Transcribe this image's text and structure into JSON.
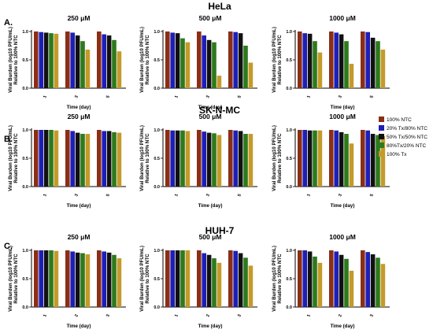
{
  "chart_data": [
    {
      "type": "bar",
      "cell_line": "HeLa",
      "panel_label": "A.",
      "ylabel": "Viral Burden (log10 PFU/mL) Relative to 100% NTC",
      "xlabel": "Time (day)",
      "ylim": [
        0,
        1.0
      ],
      "yticks": [
        "0.0",
        "0.5",
        "1.0"
      ],
      "series_names": [
        "100% NTC",
        "20% Tx/80% NTC",
        "50% Tx/50% NTC",
        "80%Tx/20% NTC",
        "100% Tx"
      ],
      "panels": [
        {
          "concentration": "250 μM",
          "categories": [
            "1",
            "3",
            "5"
          ],
          "values": [
            [
              1.0,
              0.99,
              0.98,
              0.97,
              0.96
            ],
            [
              1.0,
              0.98,
              0.93,
              0.83,
              0.68
            ],
            [
              1.0,
              0.95,
              0.93,
              0.85,
              0.65
            ]
          ]
        },
        {
          "concentration": "500 μM",
          "categories": [
            "1",
            "3",
            "5"
          ],
          "values": [
            [
              1.0,
              0.98,
              0.97,
              0.88,
              0.81
            ],
            [
              1.0,
              0.93,
              0.85,
              0.81,
              0.22
            ],
            [
              1.0,
              0.99,
              0.97,
              0.75,
              0.45
            ]
          ]
        },
        {
          "concentration": "1000 μM",
          "categories": [
            "1",
            "3",
            "5"
          ],
          "values": [
            [
              1.0,
              0.97,
              0.96,
              0.83,
              0.63
            ],
            [
              1.0,
              0.98,
              0.95,
              0.83,
              0.43
            ],
            [
              1.0,
              0.99,
              0.89,
              0.83,
              0.68
            ]
          ]
        }
      ]
    },
    {
      "type": "bar",
      "cell_line": "SK-N-MC",
      "panel_label": "B.",
      "ylabel": "Viral Burden (log10 PFU/mL) Relative to 100% NTC",
      "xlabel": "Time (day)",
      "ylim": [
        0,
        1.0
      ],
      "yticks": [
        "0.0",
        "0.5",
        "1.0"
      ],
      "series_names": [
        "100% NTC",
        "20% Tx/80% NTC",
        "50% Tx/50% NTC",
        "80%Tx/20% NTC",
        "100% Tx"
      ],
      "panels": [
        {
          "concentration": "250 μM",
          "categories": [
            "1",
            "3",
            "5"
          ],
          "values": [
            [
              1.0,
              1.0,
              1.0,
              1.0,
              0.99
            ],
            [
              1.0,
              0.98,
              0.95,
              0.93,
              0.93
            ],
            [
              1.0,
              0.98,
              0.98,
              0.96,
              0.95
            ]
          ]
        },
        {
          "concentration": "500 μM",
          "categories": [
            "1",
            "3",
            "5"
          ],
          "values": [
            [
              1.0,
              0.99,
              0.99,
              0.99,
              0.98
            ],
            [
              1.0,
              0.97,
              0.95,
              0.94,
              0.91
            ],
            [
              1.0,
              0.99,
              0.98,
              0.93,
              0.93
            ]
          ]
        },
        {
          "concentration": "1000 μM",
          "categories": [
            "1",
            "3",
            "5"
          ],
          "values": [
            [
              1.0,
              1.0,
              0.99,
              0.99,
              0.99
            ],
            [
              1.0,
              0.99,
              0.96,
              0.93,
              0.76
            ],
            [
              1.0,
              0.99,
              0.93,
              0.91,
              0.89
            ]
          ]
        }
      ]
    },
    {
      "type": "bar",
      "cell_line": "HUH-7",
      "panel_label": "C.",
      "ylabel": "Viral Burden (log10 PFU/mL) Relative to 100% NTC",
      "xlabel": "Time (day)",
      "ylim": [
        0,
        1.0
      ],
      "yticks": [
        "0.0",
        "0.5",
        "1.0"
      ],
      "series_names": [
        "100% NTC",
        "20% Tx/80% NTC",
        "50% Tx/50% NTC",
        "80%Tx/20% NTC",
        "100% Tx"
      ],
      "panels": [
        {
          "concentration": "250 μM",
          "categories": [
            "1",
            "2",
            "3"
          ],
          "values": [
            [
              1.0,
              1.0,
              1.0,
              1.0,
              0.99
            ],
            [
              1.0,
              0.98,
              0.96,
              0.95,
              0.93
            ],
            [
              1.0,
              0.98,
              0.96,
              0.92,
              0.86
            ]
          ]
        },
        {
          "concentration": "500 μM",
          "categories": [
            "1",
            "2",
            "3"
          ],
          "values": [
            [
              1.0,
              1.0,
              1.0,
              1.0,
              1.0
            ],
            [
              1.0,
              0.95,
              0.92,
              0.86,
              0.78
            ],
            [
              1.0,
              0.99,
              0.95,
              0.87,
              0.73
            ]
          ]
        },
        {
          "concentration": "1000 μM",
          "categories": [
            "1",
            "2",
            "3"
          ],
          "values": [
            [
              1.0,
              1.0,
              0.98,
              0.89,
              0.78
            ],
            [
              1.0,
              0.98,
              0.92,
              0.85,
              0.64
            ],
            [
              1.0,
              0.97,
              0.93,
              0.87,
              0.76
            ]
          ]
        }
      ]
    }
  ],
  "legend": {
    "items": [
      "100% NTC",
      "20% Tx/80% NTC",
      "50% Tx/50% NTC",
      "80%Tx/20% NTC",
      "100% Tx"
    ],
    "colors": [
      "#8B2E16",
      "#1F1FB8",
      "#111111",
      "#2D7A1D",
      "#C49A2A"
    ]
  }
}
